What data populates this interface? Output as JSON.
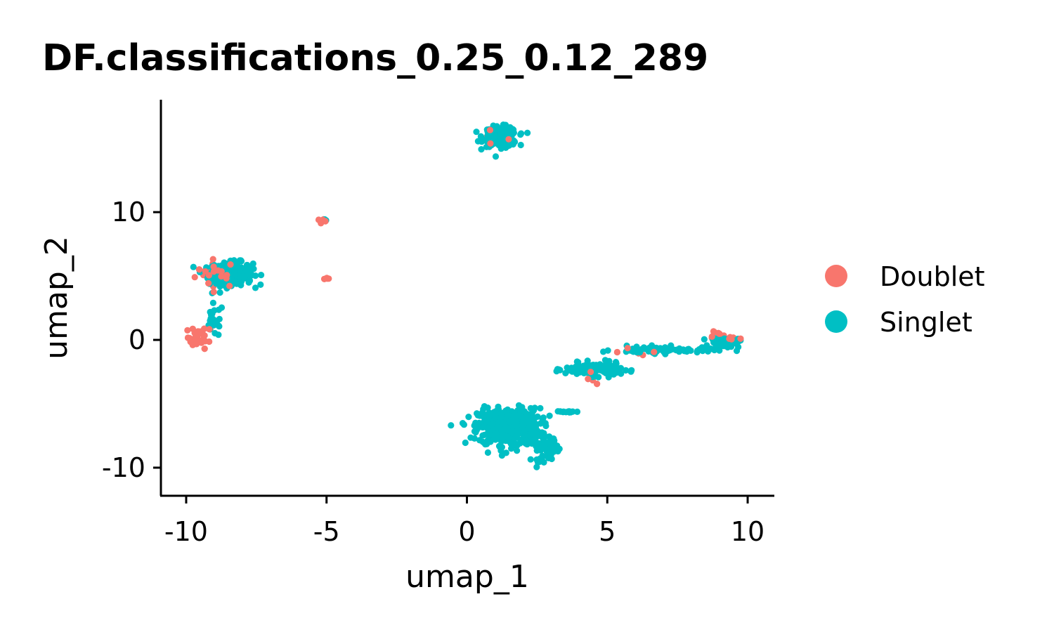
{
  "chart_data": {
    "type": "scatter",
    "title": "DF.classifications_0.25_0.12_289",
    "xlabel": "umap_1",
    "ylabel": "umap_2",
    "xlim": [
      -10.9,
      10.9
    ],
    "ylim": [
      -12.2,
      18.8
    ],
    "xticks": [
      -10,
      -5,
      0,
      5,
      10
    ],
    "xtick_labels": [
      "-10",
      "-5",
      "0",
      "5",
      "10"
    ],
    "yticks": [
      -10,
      0,
      10
    ],
    "ytick_labels": [
      "-10",
      "0",
      "10"
    ],
    "grid": false,
    "legend_position": "right",
    "series": [
      {
        "name": "Doublet",
        "color": "#F8766D",
        "clusters": [
          {
            "center": [
              -8.9,
              5.2
            ],
            "spread": [
              0.7,
              1.0
            ],
            "count": 28
          },
          {
            "center": [
              -9.5,
              0.2
            ],
            "spread": [
              0.4,
              0.8
            ],
            "count": 30
          },
          {
            "center": [
              -5.2,
              9.3
            ],
            "spread": [
              0.2,
              0.2
            ],
            "count": 5
          },
          {
            "center": [
              -5.0,
              4.8
            ],
            "spread": [
              0.15,
              0.05
            ],
            "count": 4
          },
          {
            "center": [
              1.0,
              15.6
            ],
            "spread": [
              0.5,
              0.6
            ],
            "count": 6
          },
          {
            "center": [
              4.5,
              -3.0
            ],
            "spread": [
              0.3,
              0.6
            ],
            "count": 6
          },
          {
            "center": [
              8.8,
              0.5
            ],
            "spread": [
              0.3,
              0.5
            ],
            "count": 8
          },
          {
            "center": [
              9.5,
              0.0
            ],
            "spread": [
              0.3,
              0.2
            ],
            "count": 8
          },
          {
            "center": [
              6.5,
              -1.0
            ],
            "spread": [
              1.2,
              0.3
            ],
            "count": 6
          }
        ]
      },
      {
        "name": "Singlet",
        "color": "#00BFC4",
        "clusters": [
          {
            "center": [
              -8.4,
              5.2
            ],
            "spread": [
              0.7,
              0.8
            ],
            "count": 260
          },
          {
            "center": [
              -9.0,
              1.5
            ],
            "spread": [
              0.3,
              1.2
            ],
            "count": 25
          },
          {
            "center": [
              1.2,
              15.9
            ],
            "spread": [
              0.55,
              0.7
            ],
            "count": 180
          },
          {
            "center": [
              -5.1,
              9.4
            ],
            "spread": [
              0.1,
              0.1
            ],
            "count": 2
          },
          {
            "center": [
              1.5,
              -6.8
            ],
            "spread": [
              1.0,
              1.3
            ],
            "count": 520
          },
          {
            "center": [
              2.8,
              -8.5
            ],
            "spread": [
              0.45,
              0.9
            ],
            "count": 60
          },
          {
            "center": [
              4.5,
              -2.3
            ],
            "spread": [
              0.9,
              0.45
            ],
            "count": 160
          },
          {
            "center": [
              7.0,
              -0.8
            ],
            "spread": [
              1.6,
              0.25
            ],
            "count": 80
          },
          {
            "center": [
              9.2,
              -0.2
            ],
            "spread": [
              0.45,
              0.35
            ],
            "count": 60
          },
          {
            "center": [
              3.6,
              -5.6
            ],
            "spread": [
              0.4,
              0.1
            ],
            "count": 12
          }
        ]
      }
    ]
  }
}
